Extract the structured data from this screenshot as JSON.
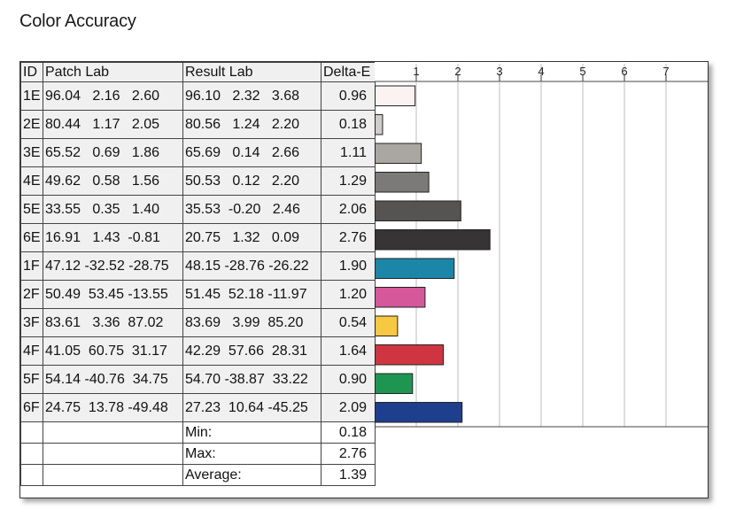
{
  "page": {
    "title": "Color Accuracy"
  },
  "table": {
    "headers": {
      "id": "ID",
      "patch": "Patch Lab",
      "result": "Result Lab",
      "delta": "Delta-E"
    },
    "rows": [
      {
        "id": "1E",
        "patch": "96.04   2.16   2.60",
        "result": "96.10   2.32   3.68",
        "delta": "0.96"
      },
      {
        "id": "2E",
        "patch": "80.44   1.17   2.05",
        "result": "80.56   1.24   2.20",
        "delta": "0.18"
      },
      {
        "id": "3E",
        "patch": "65.52   0.69   1.86",
        "result": "65.69   0.14   2.66",
        "delta": "1.11"
      },
      {
        "id": "4E",
        "patch": "49.62   0.58   1.56",
        "result": "50.53   0.12   2.20",
        "delta": "1.29"
      },
      {
        "id": "5E",
        "patch": "33.55   0.35   1.40",
        "result": "35.53  -0.20   2.46",
        "delta": "2.06"
      },
      {
        "id": "6E",
        "patch": "16.91   1.43  -0.81",
        "result": "20.75   1.32   0.09",
        "delta": "2.76"
      },
      {
        "id": "1F",
        "patch": "47.12 -32.52 -28.75",
        "result": "48.15 -28.76 -26.22",
        "delta": "1.90"
      },
      {
        "id": "2F",
        "patch": "50.49  53.45 -13.55",
        "result": "51.45  52.18 -11.97",
        "delta": "1.20"
      },
      {
        "id": "3F",
        "patch": "83.61   3.36  87.02",
        "result": "83.69   3.99  85.20",
        "delta": "0.54"
      },
      {
        "id": "4F",
        "patch": "41.05  60.75  31.17",
        "result": "42.29  57.66  28.31",
        "delta": "1.64"
      },
      {
        "id": "5F",
        "patch": "54.14 -40.76  34.75",
        "result": "54.70 -38.87  33.22",
        "delta": "0.90"
      },
      {
        "id": "6F",
        "patch": "24.75  13.78 -49.48",
        "result": "27.23  10.64 -45.25",
        "delta": "2.09"
      }
    ],
    "summary": [
      {
        "label": "Min:",
        "value": "0.18"
      },
      {
        "label": "Max:",
        "value": "2.76"
      },
      {
        "label": "Average:",
        "value": "1.39"
      }
    ]
  },
  "chart_data": {
    "type": "bar",
    "orientation": "horizontal",
    "categories": [
      "1E",
      "2E",
      "3E",
      "4E",
      "5E",
      "6E",
      "1F",
      "2F",
      "3F",
      "4F",
      "5F",
      "6F"
    ],
    "values": [
      0.96,
      0.18,
      1.11,
      1.29,
      2.06,
      2.76,
      1.9,
      1.2,
      0.54,
      1.64,
      0.9,
      2.09
    ],
    "colors": [
      "#fbf3f1",
      "#cfcccb",
      "#aaa7a2",
      "#7c7a78",
      "#555452",
      "#363435",
      "#1b86a8",
      "#d4589a",
      "#f7c842",
      "#cf3540",
      "#1e9651",
      "#1d3f8d"
    ],
    "xticks": [
      1,
      2,
      3,
      4,
      5,
      6,
      7
    ],
    "xlim": [
      0,
      8
    ],
    "grid": true,
    "title": "",
    "xlabel": "",
    "ylabel": ""
  }
}
